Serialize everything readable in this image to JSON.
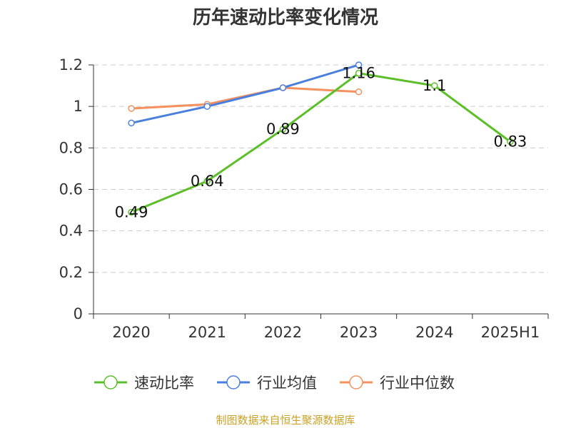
{
  "chart_data": {
    "type": "line",
    "title": "历年速动比率变化情况",
    "categories": [
      "2020",
      "2021",
      "2022",
      "2023",
      "2024",
      "2025H1"
    ],
    "y_ticks": [
      "0",
      "0.2",
      "0.4",
      "0.6",
      "0.8",
      "1",
      "1.2"
    ],
    "ylim": [
      0,
      1.2
    ],
    "grid": true,
    "legend_position": "bottom",
    "series": [
      {
        "name": "速动比率",
        "color": "#5cbf2a",
        "values": [
          0.49,
          0.64,
          0.89,
          1.16,
          1.1,
          0.83
        ],
        "labels": [
          "0.49",
          "0.64",
          "0.89",
          "1.16",
          "1.1",
          "0.83"
        ]
      },
      {
        "name": "行业均值",
        "color": "#4a7fdc",
        "values": [
          0.92,
          1.0,
          1.09,
          1.2,
          null,
          null
        ]
      },
      {
        "name": "行业中位数",
        "color": "#f4915e",
        "values": [
          0.99,
          1.01,
          1.09,
          1.07,
          null,
          null
        ]
      }
    ],
    "source": "制图数据来自恒生聚源数据库"
  }
}
